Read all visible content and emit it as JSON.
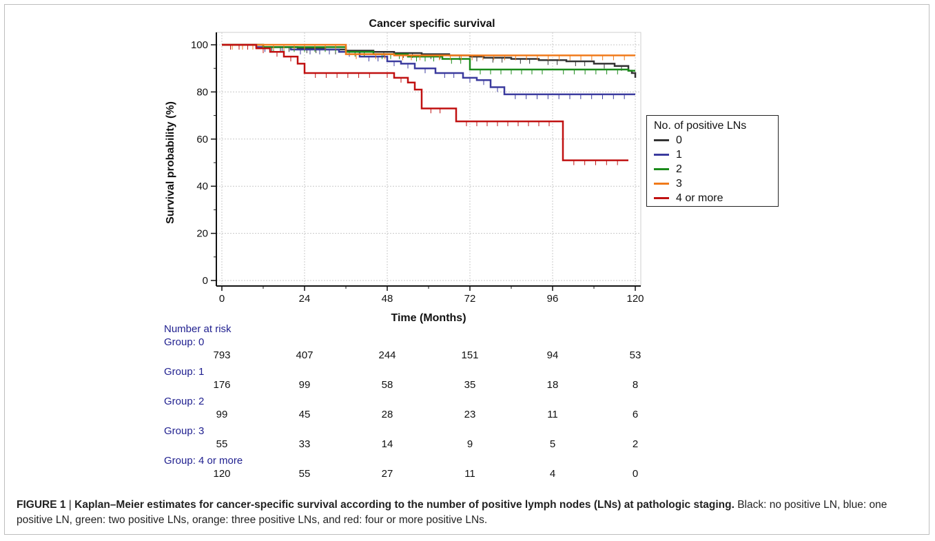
{
  "chart_data": {
    "type": "line",
    "title": "Cancer specific survival",
    "xlabel": "Time (Months)",
    "ylabel": "Survival probability (%)",
    "xlim": [
      0,
      120
    ],
    "ylim": [
      0,
      100
    ],
    "xticks": [
      0,
      24,
      48,
      72,
      96,
      120
    ],
    "yticks": [
      0,
      20,
      40,
      60,
      80,
      100
    ],
    "grid": true,
    "legend": {
      "title": "No. of positive LNs",
      "position": "right"
    },
    "series": [
      {
        "name": "0",
        "color": "#333333",
        "x": [
          0,
          12,
          22,
          30,
          36,
          44,
          50,
          58,
          66,
          72,
          76,
          84,
          92,
          100,
          108,
          114,
          118,
          119,
          120
        ],
        "y": [
          100,
          99,
          98.5,
          98,
          97.5,
          97,
          96.5,
          96,
          95.5,
          95,
          94.5,
          94,
          93.5,
          93,
          92,
          91,
          89,
          88,
          86
        ]
      },
      {
        "name": "1",
        "color": "#3b3b9e",
        "x": [
          0,
          10,
          20,
          34,
          40,
          48,
          52,
          56,
          62,
          70,
          74,
          78,
          82,
          120
        ],
        "y": [
          100,
          99,
          98,
          97,
          95,
          93,
          92,
          90,
          88,
          86,
          85,
          82,
          79,
          79
        ]
      },
      {
        "name": "2",
        "color": "#1a8a1a",
        "x": [
          0,
          12,
          36,
          44,
          54,
          64,
          72,
          96,
          118,
          120
        ],
        "y": [
          100,
          99,
          97,
          96,
          95,
          94,
          89.5,
          89.5,
          89,
          89
        ]
      },
      {
        "name": "3",
        "color": "#f07a1a",
        "x": [
          0,
          36,
          42,
          50,
          60,
          120
        ],
        "y": [
          100,
          96,
          96,
          95.5,
          95.5,
          95.5
        ]
      },
      {
        "name": "4 or more",
        "color": "#c01010",
        "x": [
          0,
          10,
          14,
          18,
          22,
          24,
          46,
          50,
          54,
          56,
          58,
          66,
          68,
          98,
          99,
          118
        ],
        "y": [
          100,
          98.5,
          97,
          95,
          92,
          88,
          88,
          86,
          84,
          81,
          73,
          73,
          67.5,
          67.5,
          51,
          51
        ]
      }
    ],
    "number_at_risk": {
      "heading": "Number at risk",
      "groups": [
        {
          "label": "Group: 0",
          "values": [
            793,
            407,
            244,
            151,
            94,
            53
          ]
        },
        {
          "label": "Group: 1",
          "values": [
            176,
            99,
            58,
            35,
            18,
            8
          ]
        },
        {
          "label": "Group: 2",
          "values": [
            99,
            45,
            28,
            23,
            11,
            6
          ]
        },
        {
          "label": "Group: 3",
          "values": [
            55,
            33,
            14,
            9,
            5,
            2
          ]
        },
        {
          "label": "Group: 4 or more",
          "values": [
            120,
            55,
            27,
            11,
            4,
            0
          ]
        }
      ]
    }
  },
  "caption": {
    "lead": "FIGURE 1",
    "separator": " | ",
    "bold_text": "Kaplan–Meier estimates for cancer-specific survival according to the number of positive lymph nodes (LNs) at pathologic staging.",
    "body": " Black: no positive LN, blue: one positive LN, green: two positive LNs, orange: three positive LNs, and red: four or more positive LNs."
  }
}
